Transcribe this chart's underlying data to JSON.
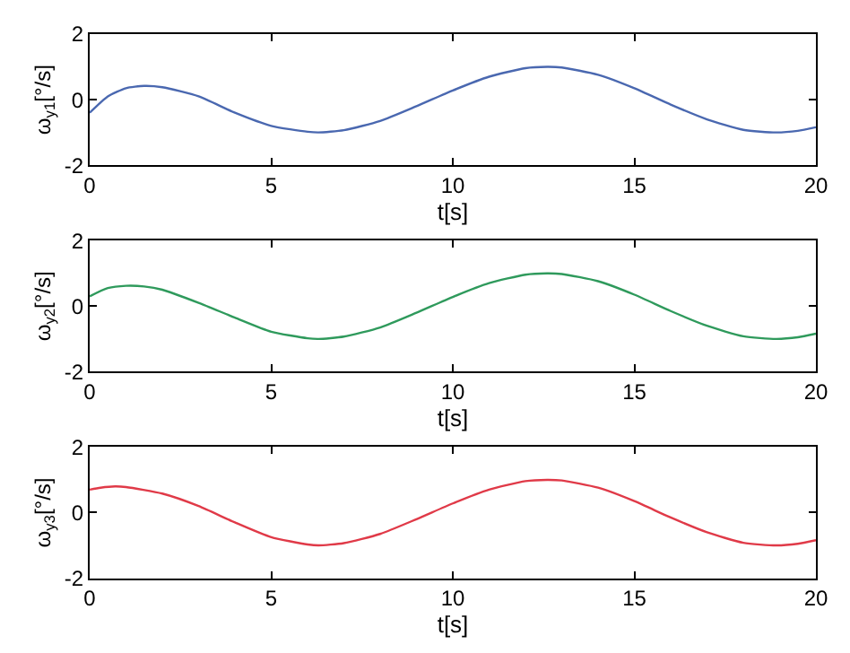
{
  "chart_data": [
    {
      "type": "line",
      "xlabel": "t[s]",
      "ylabel": "ω$_{y1}$[°/s]",
      "xlim": [
        0,
        20
      ],
      "xticks": [
        0,
        5,
        10,
        15,
        20
      ],
      "ylim": [
        -2,
        2
      ],
      "yticks": [
        -2,
        0,
        2
      ],
      "x": [
        0,
        0.5,
        1,
        1.5,
        2,
        3,
        4,
        5,
        6,
        6.3,
        7,
        8,
        9,
        10,
        11,
        12,
        12.6,
        13,
        14,
        15,
        16,
        17,
        18,
        18.9,
        19.5,
        20
      ],
      "series": [
        {
          "color": "#4a68b0",
          "values": [
            -0.4,
            0.1,
            0.35,
            0.42,
            0.38,
            0.1,
            -0.4,
            -0.8,
            -0.98,
            -1,
            -0.93,
            -0.65,
            -0.2,
            0.28,
            0.7,
            0.96,
            1,
            0.98,
            0.76,
            0.35,
            -0.15,
            -0.6,
            -0.92,
            -1,
            -0.95,
            -0.84
          ]
        }
      ]
    },
    {
      "type": "line",
      "xlabel": "t[s]",
      "ylabel": "ω$_{y2}$[°/s]",
      "xlim": [
        0,
        20
      ],
      "xticks": [
        0,
        5,
        10,
        15,
        20
      ],
      "ylim": [
        -2,
        2
      ],
      "yticks": [
        -2,
        0,
        2
      ],
      "x": [
        0,
        0.5,
        1,
        1.5,
        2,
        3,
        4,
        5,
        6,
        6.3,
        7,
        8,
        9,
        10,
        11,
        12,
        12.6,
        13,
        14,
        15,
        16,
        17,
        18,
        18.9,
        19.5,
        20
      ],
      "series": [
        {
          "color": "#2f9a5c",
          "values": [
            0.3,
            0.55,
            0.62,
            0.6,
            0.5,
            0.1,
            -0.35,
            -0.78,
            -0.98,
            -1,
            -0.93,
            -0.65,
            -0.2,
            0.28,
            0.7,
            0.96,
            1,
            0.98,
            0.76,
            0.35,
            -0.15,
            -0.6,
            -0.92,
            -1,
            -0.95,
            -0.84
          ]
        }
      ]
    },
    {
      "type": "line",
      "xlabel": "t[s]",
      "ylabel": "ω$_{y3}$[°/s]",
      "xlim": [
        0,
        20
      ],
      "xticks": [
        0,
        5,
        10,
        15,
        20
      ],
      "ylim": [
        -2,
        2
      ],
      "yticks": [
        -2,
        0,
        2
      ],
      "x": [
        0,
        0.3,
        0.7,
        1,
        2,
        3,
        4,
        5,
        6,
        6.3,
        7,
        8,
        9,
        10,
        11,
        12,
        12.6,
        13,
        14,
        15,
        16,
        17,
        18,
        18.9,
        19.5,
        20
      ],
      "series": [
        {
          "color": "#e03a48",
          "values": [
            0.7,
            0.76,
            0.8,
            0.78,
            0.58,
            0.2,
            -0.3,
            -0.75,
            -0.97,
            -1,
            -0.93,
            -0.65,
            -0.2,
            0.28,
            0.7,
            0.96,
            1,
            0.98,
            0.76,
            0.35,
            -0.15,
            -0.6,
            -0.92,
            -1,
            -0.95,
            -0.84
          ]
        }
      ]
    }
  ]
}
